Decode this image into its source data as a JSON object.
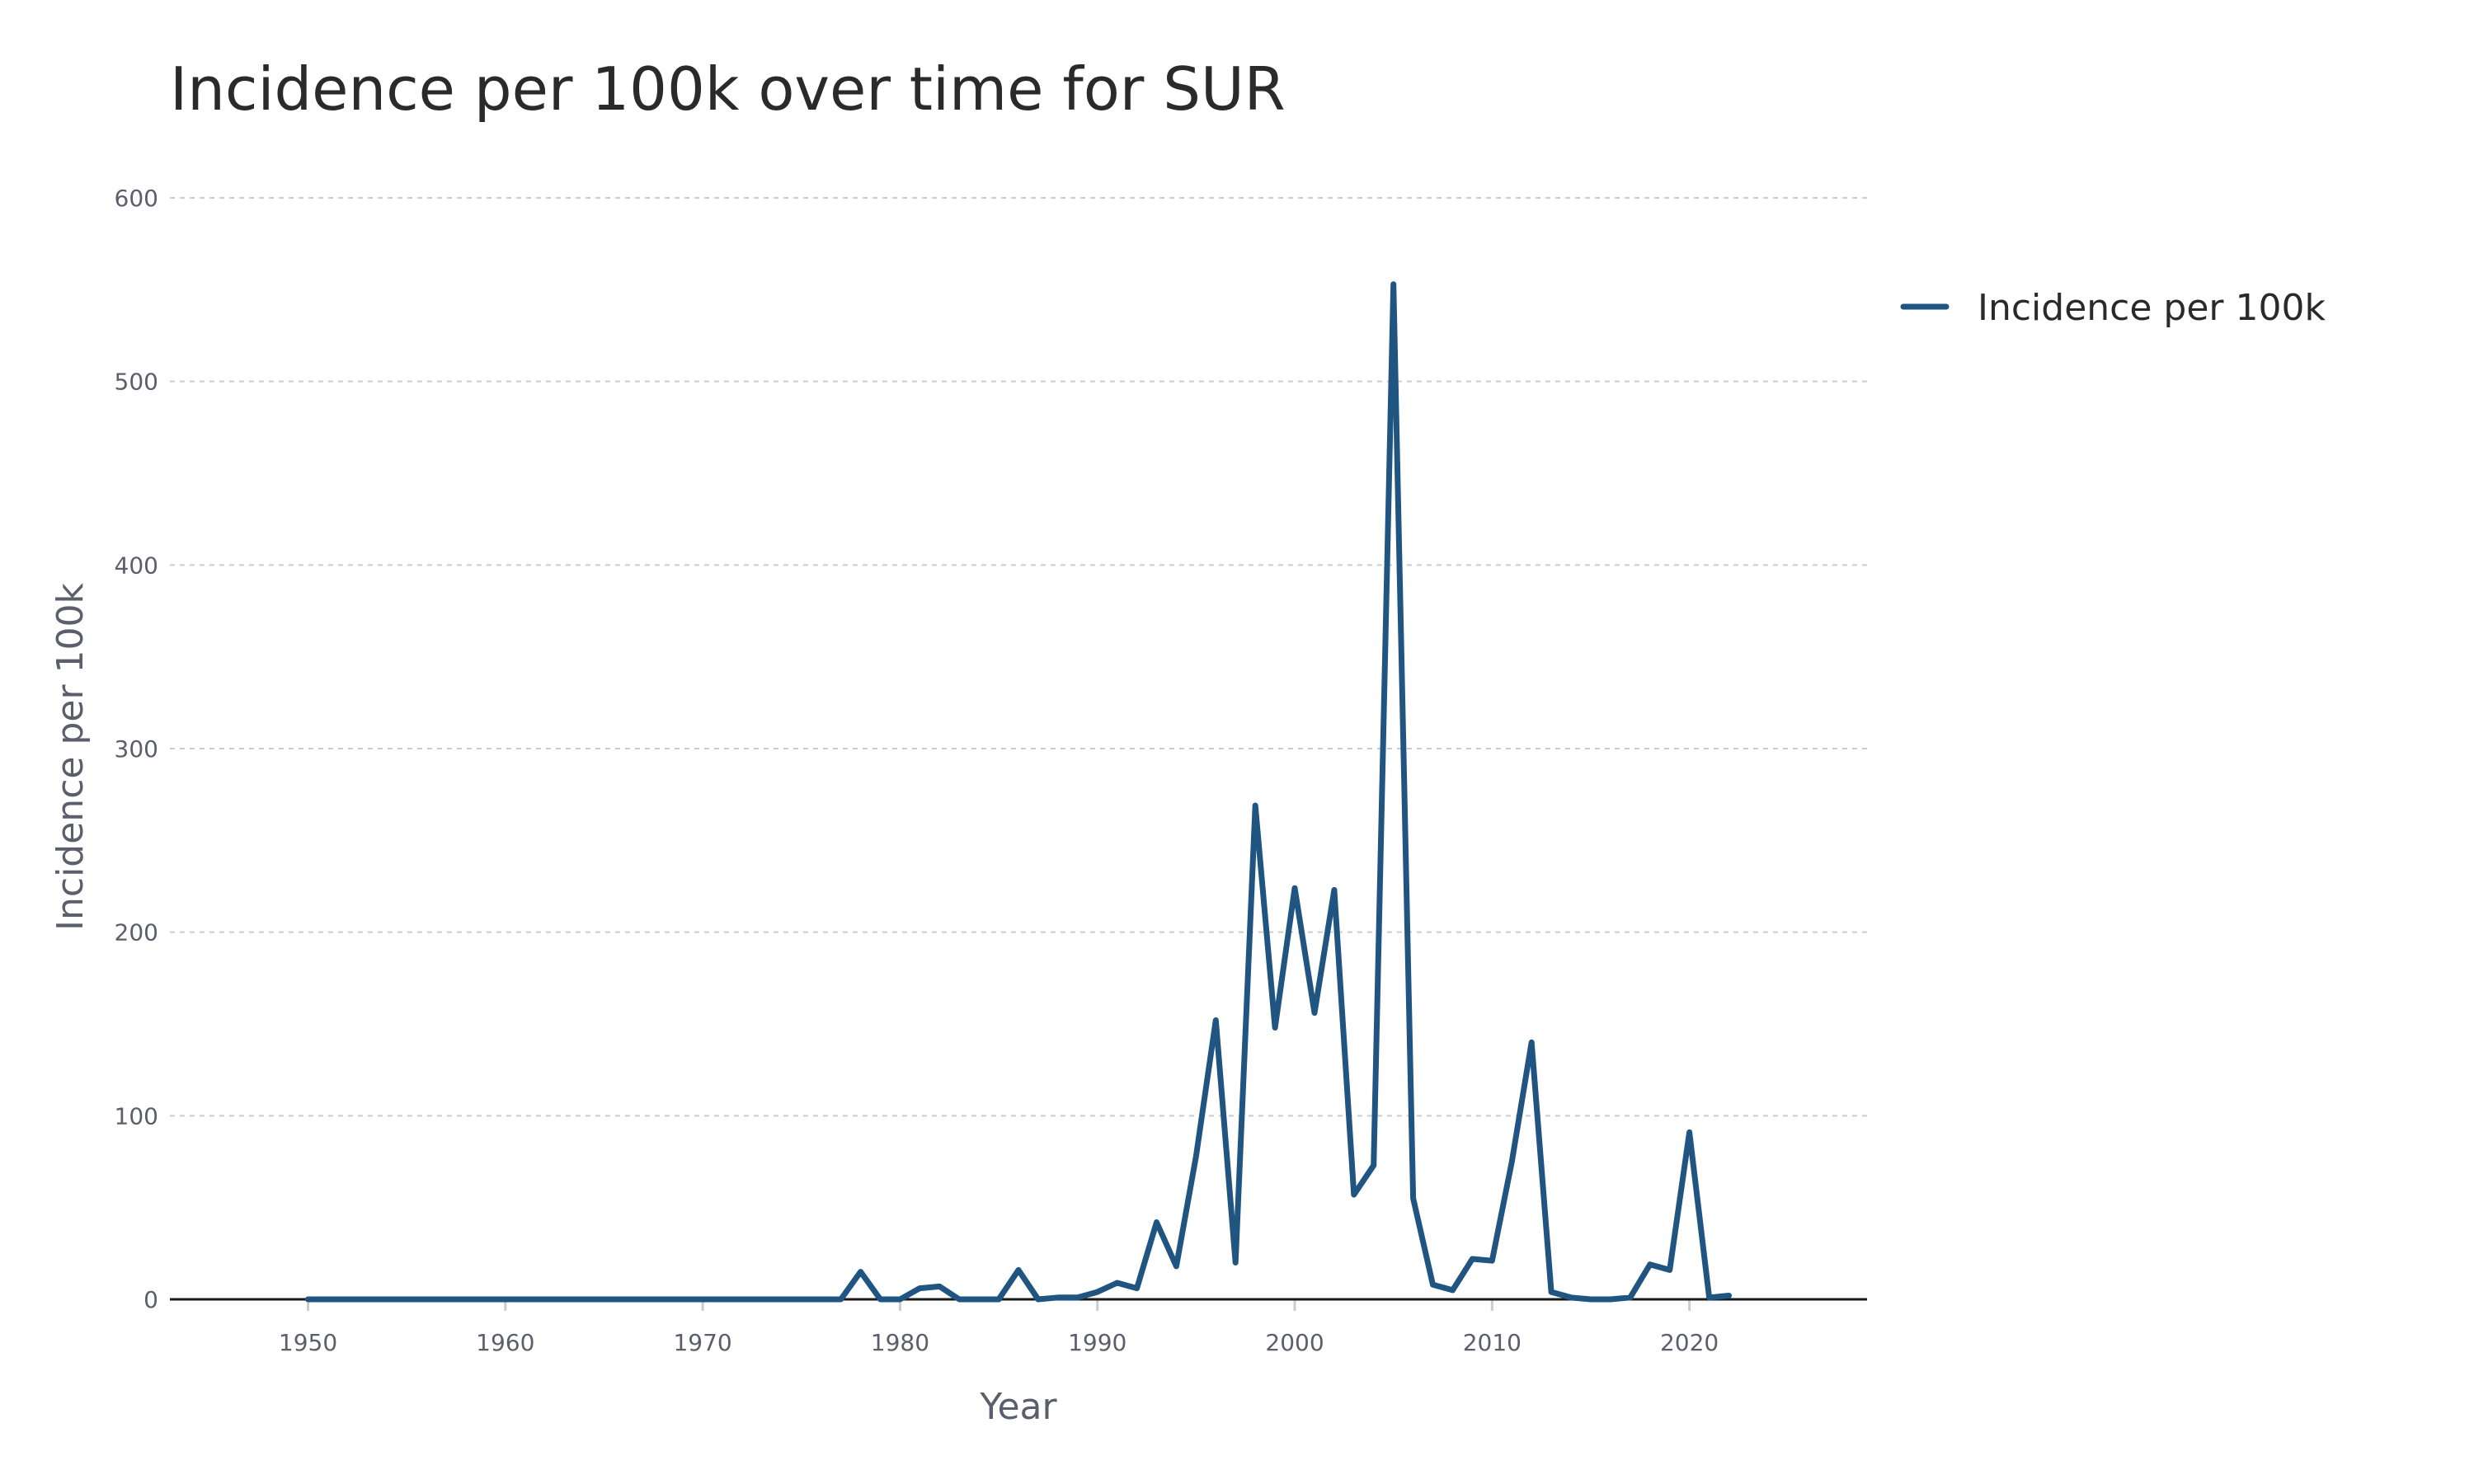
{
  "chart_data": {
    "type": "line",
    "title": "Incidence per 100k over time for SUR",
    "xlabel": "Year",
    "ylabel": "Incidence per 100k",
    "xlim": [
      1943,
      2029
    ],
    "ylim": [
      0,
      600
    ],
    "xticks": [
      1950,
      1960,
      1970,
      1980,
      1990,
      2000,
      2010,
      2020
    ],
    "yticks": [
      0,
      100,
      200,
      300,
      400,
      500,
      600
    ],
    "grid": "horizontal-dashed",
    "legend_position": "right",
    "series": [
      {
        "name": "Incidence per 100k",
        "color": "#1f5580",
        "x": [
          1950,
          1951,
          1952,
          1953,
          1954,
          1955,
          1956,
          1957,
          1958,
          1959,
          1960,
          1961,
          1962,
          1963,
          1964,
          1965,
          1966,
          1967,
          1968,
          1969,
          1970,
          1971,
          1972,
          1973,
          1974,
          1975,
          1976,
          1977,
          1978,
          1979,
          1980,
          1981,
          1982,
          1983,
          1984,
          1985,
          1986,
          1987,
          1988,
          1989,
          1990,
          1991,
          1992,
          1993,
          1994,
          1995,
          1996,
          1997,
          1998,
          1999,
          2000,
          2001,
          2002,
          2003,
          2004,
          2005,
          2006,
          2007,
          2008,
          2009,
          2010,
          2011,
          2012,
          2013,
          2014,
          2015,
          2016,
          2017,
          2018,
          2019,
          2020,
          2021,
          2022
        ],
        "y": [
          0,
          0,
          0,
          0,
          0,
          0,
          0,
          0,
          0,
          0,
          0,
          0,
          0,
          0,
          0,
          0,
          0,
          0,
          0,
          0,
          0,
          0,
          0,
          0,
          0,
          0,
          0,
          0,
          15,
          0,
          0,
          6,
          7,
          0,
          0,
          0,
          16,
          0,
          1,
          1,
          4,
          9,
          6,
          42,
          18,
          78,
          152,
          20,
          269,
          148,
          224,
          156,
          223,
          57,
          73,
          553,
          55,
          8,
          5,
          22,
          21,
          75,
          140,
          4,
          1,
          0,
          0,
          1,
          19,
          16,
          91,
          1,
          2
        ]
      }
    ]
  }
}
